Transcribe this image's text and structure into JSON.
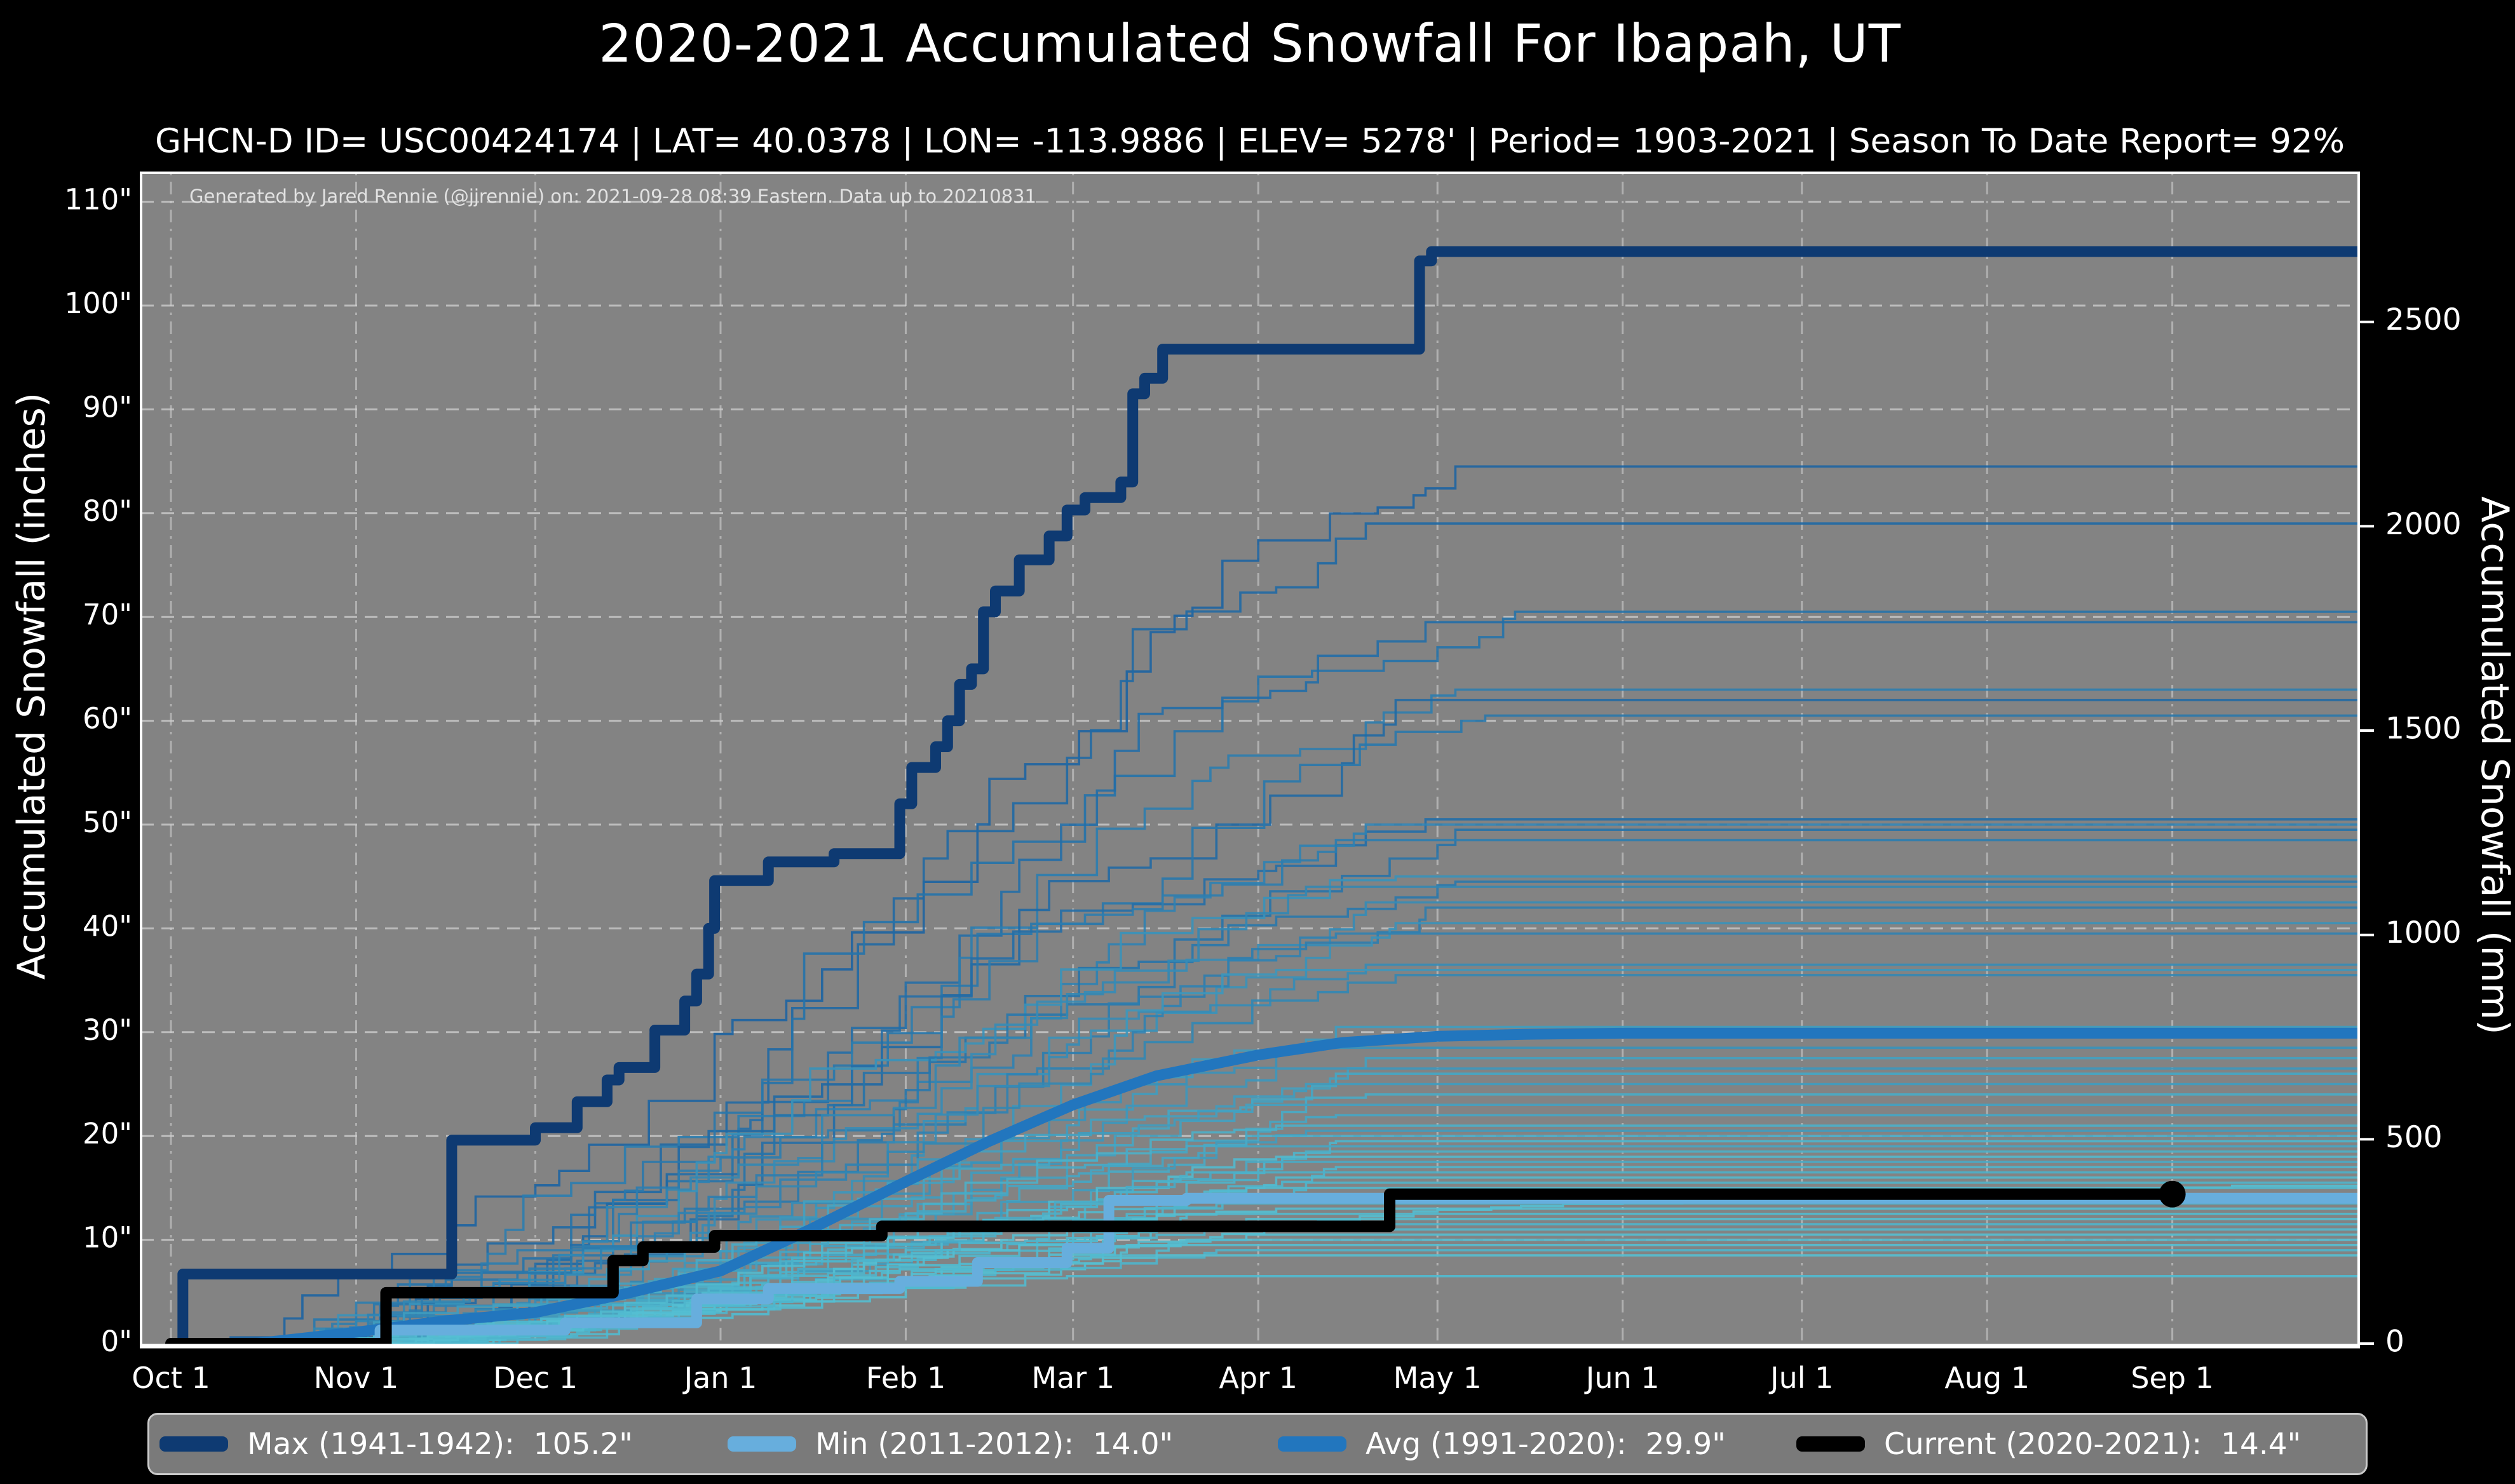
{
  "title": "2020-2021 Accumulated Snowfall For Ibapah, UT",
  "subtitle": "GHCN-D ID= USC00424174 | LAT= 40.0378 | LON= -113.9886 | ELEV= 5278' | Period= 1903-2021 | Season To Date Report= 92%",
  "annotation": "Generated by Jared Rennie (@jjrennie) on: 2021-09-28 08:39 Eastern. Data up to 20210831",
  "colors": {
    "background": "#000000",
    "plot_bg": "#838383",
    "grid": "#cfcfcf",
    "max": "#0e3a72",
    "min": "#67aedd",
    "avg": "#2276be",
    "current": "#000000",
    "ensemble_dark": "#1a5f9f",
    "ensemble_light": "#57c4d4",
    "text": "#ffffff",
    "annotation_text": "#e2e2e2",
    "legend_bg": "#7a7a7a",
    "legend_border": "#c9c9c9"
  },
  "legend": {
    "items": [
      {
        "label": "Max (1941-1942):  105.2\"",
        "color_key": "max"
      },
      {
        "label": "Min (2011-2012):  14.0\"",
        "color_key": "min"
      },
      {
        "label": "Avg (1991-2020):  29.9\"",
        "color_key": "avg"
      },
      {
        "label": "Current (2020-2021):  14.4\"",
        "color_key": "current"
      }
    ]
  },
  "chart_data": {
    "type": "line",
    "title": "2020-2021 Accumulated Snowfall For Ibapah, UT",
    "x_axis": {
      "tick_labels": [
        "Oct 1",
        "Nov 1",
        "Dec 1",
        "Jan 1",
        "Feb 1",
        "Mar 1",
        "Apr 1",
        "May 1",
        "Jun 1",
        "Jul 1",
        "Aug 1",
        "Sep 1"
      ],
      "tick_days": [
        0,
        31,
        61,
        92,
        123,
        151,
        182,
        212,
        243,
        273,
        304,
        335
      ],
      "domain_days": [
        0,
        365
      ],
      "grid": true
    },
    "y_left": {
      "label": "Accumulated Snowfall (inches)",
      "tick_values": [
        0,
        10,
        20,
        30,
        40,
        50,
        60,
        70,
        80,
        90,
        100,
        110
      ],
      "tick_labels": [
        "0\"",
        "10\"",
        "20\"",
        "30\"",
        "40\"",
        "50\"",
        "60\"",
        "70\"",
        "80\"",
        "90\"",
        "100\"",
        "110\""
      ],
      "ylim": [
        0,
        113
      ],
      "grid": true
    },
    "y_right": {
      "label": "Accumulated Snowfall (mm)",
      "tick_values": [
        0,
        500,
        1000,
        1500,
        2000,
        2500
      ],
      "tick_labels": [
        "0",
        "500",
        "1000",
        "1500",
        "2000",
        "2500"
      ],
      "mm_per_inch": 25.4
    },
    "series": [
      {
        "name": "Max (1941-1942)",
        "final_value_in": 105.2,
        "color_key": "max",
        "style": "step",
        "points": [
          [
            0,
            0
          ],
          [
            2,
            0
          ],
          [
            2,
            6.7
          ],
          [
            47,
            6.7
          ],
          [
            47,
            19.6
          ],
          [
            61,
            19.6
          ],
          [
            61,
            20.8
          ],
          [
            68,
            20.8
          ],
          [
            68,
            23.3
          ],
          [
            73,
            23.3
          ],
          [
            73,
            25.4
          ],
          [
            75,
            25.4
          ],
          [
            75,
            26.6
          ],
          [
            81,
            26.6
          ],
          [
            81,
            30.2
          ],
          [
            86,
            30.2
          ],
          [
            86,
            33
          ],
          [
            88,
            33
          ],
          [
            88,
            35.6
          ],
          [
            90,
            35.6
          ],
          [
            90,
            40
          ],
          [
            91,
            40
          ],
          [
            91,
            44.6
          ],
          [
            100,
            44.6
          ],
          [
            100,
            46.4
          ],
          [
            111,
            46.4
          ],
          [
            111,
            47.2
          ],
          [
            122,
            47.2
          ],
          [
            122,
            52
          ],
          [
            124,
            52
          ],
          [
            124,
            55.5
          ],
          [
            128,
            55.5
          ],
          [
            128,
            57.5
          ],
          [
            130,
            57.5
          ],
          [
            130,
            60
          ],
          [
            132,
            60
          ],
          [
            132,
            63.5
          ],
          [
            134,
            63.5
          ],
          [
            134,
            65
          ],
          [
            136,
            65
          ],
          [
            136,
            70.5
          ],
          [
            138,
            70.5
          ],
          [
            138,
            72.5
          ],
          [
            142,
            72.5
          ],
          [
            142,
            75.5
          ],
          [
            147,
            75.5
          ],
          [
            147,
            77.8
          ],
          [
            150,
            77.8
          ],
          [
            150,
            80.3
          ],
          [
            153,
            80.3
          ],
          [
            153,
            81.5
          ],
          [
            159,
            81.5
          ],
          [
            159,
            83
          ],
          [
            161,
            83
          ],
          [
            161,
            91.5
          ],
          [
            163,
            91.5
          ],
          [
            163,
            93
          ],
          [
            166,
            93
          ],
          [
            166,
            95.8
          ],
          [
            209,
            95.8
          ],
          [
            209,
            104.3
          ],
          [
            211,
            104.3
          ],
          [
            211,
            105.2
          ],
          [
            367,
            105.2
          ]
        ]
      },
      {
        "name": "Min (2011-2012)",
        "final_value_in": 14.0,
        "color_key": "min",
        "style": "step",
        "points": [
          [
            0,
            0
          ],
          [
            35,
            0
          ],
          [
            35,
            1.3
          ],
          [
            66,
            1.3
          ],
          [
            66,
            2
          ],
          [
            88,
            2
          ],
          [
            88,
            4.3
          ],
          [
            100,
            4.3
          ],
          [
            100,
            5.3
          ],
          [
            122,
            5.3
          ],
          [
            122,
            6
          ],
          [
            135,
            6
          ],
          [
            135,
            7.8
          ],
          [
            150,
            7.8
          ],
          [
            150,
            9.2
          ],
          [
            157,
            9.2
          ],
          [
            157,
            13.8
          ],
          [
            170,
            13.8
          ],
          [
            170,
            14
          ],
          [
            367,
            14
          ]
        ]
      },
      {
        "name": "Avg (1991-2020)",
        "final_value_in": 29.9,
        "color_key": "avg",
        "style": "smooth",
        "points": [
          [
            0,
            0
          ],
          [
            14,
            0
          ],
          [
            31,
            1.1
          ],
          [
            46,
            2.2
          ],
          [
            61,
            3
          ],
          [
            76,
            4.8
          ],
          [
            92,
            7
          ],
          [
            107,
            11
          ],
          [
            123,
            15.6
          ],
          [
            137,
            19.5
          ],
          [
            151,
            23
          ],
          [
            165,
            25.8
          ],
          [
            182,
            27.8
          ],
          [
            196,
            29
          ],
          [
            212,
            29.6
          ],
          [
            227,
            29.8
          ],
          [
            243,
            29.9
          ],
          [
            367,
            29.9
          ]
        ]
      },
      {
        "name": "Current (2020-2021)",
        "final_value_in": 14.4,
        "color_key": "current",
        "style": "step",
        "end_marker_day": 335,
        "points": [
          [
            0,
            0
          ],
          [
            36,
            0
          ],
          [
            36,
            4.9
          ],
          [
            74,
            4.9
          ],
          [
            74,
            8
          ],
          [
            79,
            8
          ],
          [
            79,
            9.3
          ],
          [
            91,
            9.3
          ],
          [
            91,
            10.4
          ],
          [
            119,
            10.4
          ],
          [
            119,
            11.3
          ],
          [
            204,
            11.3
          ],
          [
            204,
            14.4
          ],
          [
            335,
            14.4
          ]
        ]
      }
    ],
    "ensemble_note": "Thin background lines are the 1903-2021 historical seasons; values below are the approximate season-end totals (inches), accumulation start day, accumulation end day (days after Oct 1), and color shade read from the plot.",
    "ensemble_lines": [
      [
        84.5,
        8,
        215,
        0.05
      ],
      [
        79,
        20,
        200,
        0.1
      ],
      [
        70.5,
        15,
        225,
        0.2
      ],
      [
        69.5,
        30,
        210,
        0.15
      ],
      [
        63,
        10,
        215,
        0.3
      ],
      [
        62,
        25,
        205,
        0.1
      ],
      [
        60.5,
        18,
        220,
        0.25
      ],
      [
        50.5,
        35,
        210,
        0.15
      ],
      [
        50,
        12,
        200,
        0.35
      ],
      [
        49.5,
        28,
        215,
        0.2
      ],
      [
        48.5,
        40,
        195,
        0.3
      ],
      [
        45,
        22,
        205,
        0.5
      ],
      [
        44.5,
        30,
        215,
        0.25
      ],
      [
        44,
        16,
        190,
        0.4
      ],
      [
        42.5,
        33,
        200,
        0.45
      ],
      [
        42,
        26,
        210,
        0.3
      ],
      [
        40.5,
        38,
        205,
        0.5
      ],
      [
        39.5,
        20,
        195,
        0.35
      ],
      [
        36.5,
        42,
        200,
        0.45
      ],
      [
        36,
        30,
        185,
        0.55
      ],
      [
        35.5,
        24,
        205,
        0.4
      ],
      [
        30.5,
        36,
        195,
        0.6
      ],
      [
        28.5,
        44,
        190,
        0.5
      ],
      [
        27.5,
        28,
        200,
        0.65
      ],
      [
        26.5,
        40,
        185,
        0.55
      ],
      [
        26,
        32,
        195,
        0.7
      ],
      [
        25,
        22,
        190,
        0.6
      ],
      [
        24,
        46,
        200,
        0.75
      ],
      [
        23,
        38,
        180,
        0.65
      ],
      [
        22,
        30,
        195,
        0.7
      ],
      [
        21,
        42,
        185,
        0.8
      ],
      [
        20.5,
        34,
        190,
        0.6
      ],
      [
        20,
        26,
        180,
        0.75
      ],
      [
        19.5,
        48,
        195,
        0.85
      ],
      [
        19,
        36,
        175,
        0.7
      ],
      [
        18.5,
        40,
        190,
        0.8
      ],
      [
        18,
        28,
        185,
        0.9
      ],
      [
        17.5,
        44,
        180,
        0.75
      ],
      [
        17,
        32,
        195,
        0.85
      ],
      [
        16.5,
        38,
        170,
        0.8
      ],
      [
        16,
        24,
        185,
        0.9
      ],
      [
        15.5,
        46,
        190,
        0.85
      ],
      [
        15.2,
        34,
        345,
        0.95
      ],
      [
        15,
        40,
        180,
        0.9
      ],
      [
        13.5,
        30,
        175,
        0.85
      ],
      [
        13,
        44,
        185,
        0.95
      ],
      [
        12.5,
        36,
        170,
        0.9
      ],
      [
        12,
        26,
        180,
        0.95
      ],
      [
        11.5,
        42,
        175,
        0.85
      ],
      [
        11,
        34,
        165,
        0.9
      ],
      [
        10.5,
        48,
        180,
        0.95
      ],
      [
        10,
        38,
        170,
        0.9
      ],
      [
        9.5,
        30,
        160,
        0.95
      ],
      [
        9,
        44,
        175,
        0.85
      ],
      [
        8.5,
        36,
        165,
        0.95
      ],
      [
        6.5,
        2,
        150,
        0.9
      ]
    ]
  }
}
